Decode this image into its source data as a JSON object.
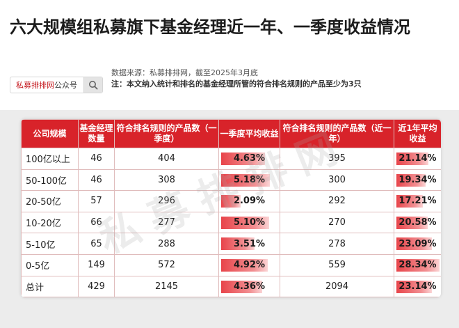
{
  "title": "六大规模组私募旗下基金经理近一年、一季度收益情况",
  "search": {
    "brand": "私募排排网",
    "suffix": "公众号"
  },
  "source": "数据来源：私募排排网，截至2025年3月底",
  "note": "注：本文纳入统计和排名的基金经理所管的符合排名规则的产品至少为3只",
  "watermark": "私募排排网",
  "headers": [
    "公司规模",
    "基金经理数量",
    "符合排名规则的产品数（一季度）",
    "一季度平均收益",
    "符合排名规则的产品数（近一年）",
    "近1年平均收益"
  ],
  "bar_color": "#e8444a",
  "rows": [
    {
      "scale": "100亿以上",
      "managers": "46",
      "q1_products": "404",
      "q1_return": "4.63%",
      "q1_value": 4.63,
      "y_products": "395",
      "y_return": "21.14%",
      "y_value": 21.14
    },
    {
      "scale": "50-100亿",
      "managers": "46",
      "q1_products": "308",
      "q1_return": "5.18%",
      "q1_value": 5.18,
      "y_products": "300",
      "y_return": "19.34%",
      "y_value": 19.34
    },
    {
      "scale": "20-50亿",
      "managers": "57",
      "q1_products": "296",
      "q1_return": "2.09%",
      "q1_value": 2.09,
      "y_products": "292",
      "y_return": "17.21%",
      "y_value": 17.21
    },
    {
      "scale": "10-20亿",
      "managers": "66",
      "q1_products": "277",
      "q1_return": "5.10%",
      "q1_value": 5.1,
      "y_products": "270",
      "y_return": "20.58%",
      "y_value": 20.58
    },
    {
      "scale": "5-10亿",
      "managers": "65",
      "q1_products": "288",
      "q1_return": "3.51%",
      "q1_value": 3.51,
      "y_products": "278",
      "y_return": "23.09%",
      "y_value": 23.09
    },
    {
      "scale": "0-5亿",
      "managers": "149",
      "q1_products": "572",
      "q1_return": "4.92%",
      "q1_value": 4.92,
      "y_products": "559",
      "y_return": "28.34%",
      "y_value": 28.34
    },
    {
      "scale": "总计",
      "managers": "429",
      "q1_products": "2145",
      "q1_return": "4.36%",
      "q1_value": 4.36,
      "y_products": "2094",
      "y_return": "23.14%",
      "y_value": 23.14
    }
  ]
}
